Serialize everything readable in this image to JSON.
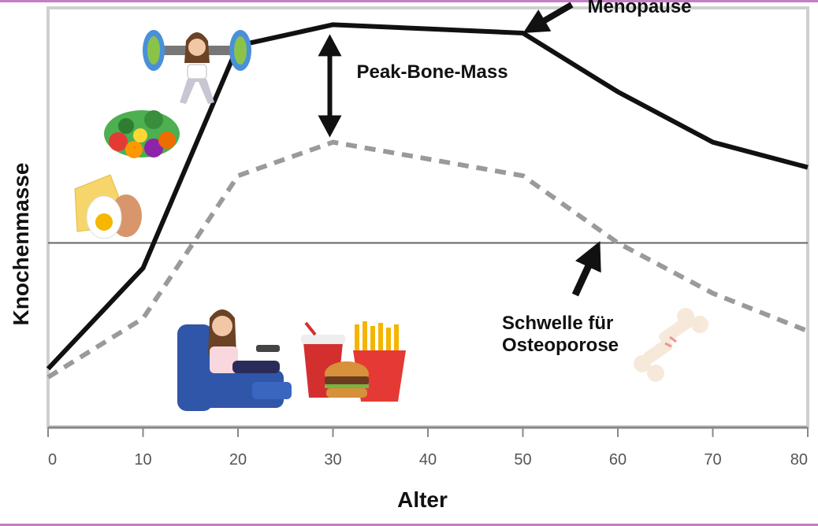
{
  "chart_data": {
    "type": "line",
    "x": [
      0,
      10,
      20,
      30,
      40,
      50,
      60,
      70,
      80
    ],
    "xlabel": "Alter",
    "ylabel": "Knochenmasse",
    "xlim": [
      0,
      80
    ],
    "ylim": [
      0,
      100
    ],
    "grid": false,
    "series": [
      {
        "style": "solid",
        "color": "#111111",
        "x": [
          0,
          10,
          20,
          30,
          40,
          50,
          60,
          70,
          80
        ],
        "values": [
          14,
          38,
          91,
          96,
          95,
          94,
          80,
          68,
          62
        ]
      },
      {
        "style": "dashed",
        "color": "#9a9a9a",
        "x": [
          0,
          10,
          20,
          30,
          40,
          50,
          60,
          70,
          80
        ],
        "values": [
          12,
          26,
          60,
          68,
          64,
          60,
          44,
          32,
          23
        ]
      }
    ],
    "threshold": {
      "value": 44,
      "label_lines": [
        "Schwelle für",
        "Osteoporose"
      ]
    },
    "annotations": {
      "menopause": "Menopause",
      "peak_bone_mass": "Peak-Bone-Mass"
    },
    "illustrations": [
      "weightlifting-woman-icon",
      "vegetables-icon",
      "cheese-egg-icon",
      "couch-woman-icon",
      "fastfood-icon",
      "broken-bone-icon"
    ]
  }
}
